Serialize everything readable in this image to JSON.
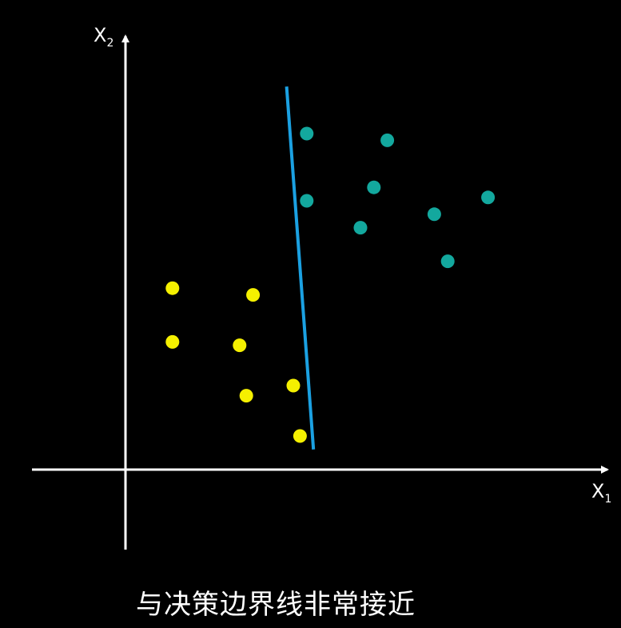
{
  "axes": {
    "x_label_main": "X",
    "x_label_sub": "1",
    "y_label_main": "X",
    "y_label_sub": "2",
    "color": "#ffffff"
  },
  "caption": "与决策边界线非常接近",
  "colors": {
    "class_a": "#f5f000",
    "class_b": "#13a89e",
    "boundary": "#1ba1e2"
  },
  "chart_data": {
    "type": "scatter",
    "series": [
      {
        "class": "a",
        "points": [
          [
            0.7,
            2.7
          ],
          [
            1.9,
            2.6
          ],
          [
            0.7,
            1.9
          ],
          [
            1.7,
            1.85
          ],
          [
            1.8,
            1.1
          ],
          [
            2.5,
            1.25
          ],
          [
            2.6,
            0.5
          ]
        ]
      },
      {
        "class": "b",
        "points": [
          [
            2.7,
            5.0
          ],
          [
            3.9,
            4.9
          ],
          [
            2.7,
            4.0
          ],
          [
            3.7,
            4.2
          ],
          [
            3.5,
            3.6
          ],
          [
            4.6,
            3.8
          ],
          [
            5.4,
            4.05
          ],
          [
            4.8,
            3.1
          ]
        ]
      }
    ],
    "boundary_line": [
      [
        2.4,
        5.7
      ],
      [
        2.8,
        0.3
      ]
    ],
    "xlim": [
      -1.5,
      7.5
    ],
    "ylim": [
      -1.25,
      7.0
    ],
    "grid": false
  }
}
